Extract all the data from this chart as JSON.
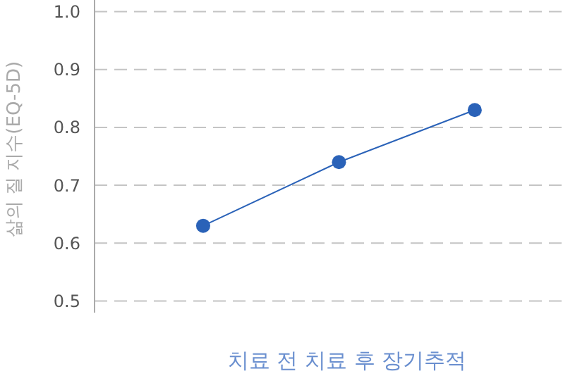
{
  "chart_data": {
    "type": "line",
    "xlabel": "치료 전 치료 후 장기추적",
    "ylabel": "삶의 질 지수(EQ-5D)",
    "categories": [
      null,
      null,
      null
    ],
    "series": [
      {
        "color": "#2a62b8",
        "values": [
          0.63,
          0.74,
          0.83
        ]
      }
    ],
    "ylim": [
      0.48,
      1.02
    ],
    "yticks": [
      {
        "value": 0.5,
        "label": "0.5"
      },
      {
        "value": 0.6,
        "label": "0.6"
      },
      {
        "value": 0.7,
        "label": "0.7"
      },
      {
        "value": 0.8,
        "label": "0.8"
      },
      {
        "value": 0.9,
        "label": "0.9"
      },
      {
        "value": 1.0,
        "label": "1.0"
      }
    ],
    "grid": "y",
    "marker": "circle",
    "line_style": "solid"
  }
}
